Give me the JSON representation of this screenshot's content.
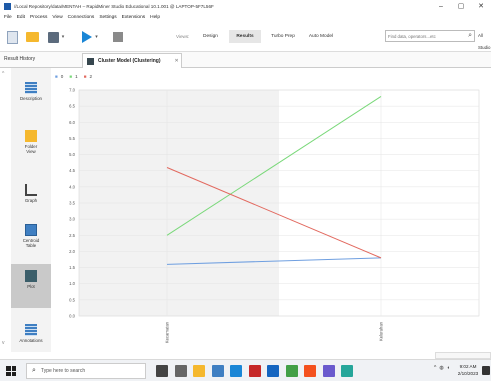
{
  "window": {
    "title": "//Local Repository/data/MENTAH – RapidMiner Studio Educational 10.1.001 @ LAPTOP-5F7L56F",
    "minimize": "–",
    "maximize": "▢",
    "close": "✕"
  },
  "menu": [
    "File",
    "Edit",
    "Process",
    "View",
    "Connections",
    "Settings",
    "Extensions",
    "Help"
  ],
  "toolbar": {
    "views_label": "Views:",
    "views": [
      "Design",
      "Results",
      "Turbo Prep",
      "Auto Model"
    ],
    "active_view": "Results",
    "search_placeholder": "Find data, operators...etc",
    "studio_label": "All Studio ▾"
  },
  "tabs": {
    "result_history": "Result History",
    "active_tab": "Cluster Model (Clustering)",
    "close": "✕"
  },
  "sidebar": {
    "items": [
      "Description",
      "Folder View",
      "Graph",
      "Centroid Table",
      "Plot",
      "Annotations"
    ],
    "active": "Plot"
  },
  "chart_data": {
    "type": "line",
    "categories": [
      "Kecamatan",
      "Kelurahan"
    ],
    "series": [
      {
        "name": "0",
        "color": "#6f9fe0",
        "values": [
          1.6,
          1.8
        ]
      },
      {
        "name": "1",
        "color": "#79d879",
        "values": [
          2.5,
          6.8
        ]
      },
      {
        "name": "2",
        "color": "#e2695f",
        "values": [
          4.6,
          1.8
        ]
      }
    ],
    "y_ticks": [
      "0.0",
      "0.5",
      "1.0",
      "1.5",
      "2.0",
      "2.5",
      "3.0",
      "3.5",
      "4.0",
      "4.5",
      "5.0",
      "5.5",
      "6.0",
      "6.5",
      "7.0"
    ],
    "ylim": [
      0,
      7
    ],
    "grid": true,
    "legend_position": "top-left"
  },
  "taskbar": {
    "search_text": "Type here to search",
    "time": "9:02 AM",
    "date": "2/10/2023",
    "icon_colors": [
      "#444444",
      "#666666",
      "#f5b82e",
      "#3f7fc2",
      "#1a86d6",
      "#c62828",
      "#1565c0",
      "#43a047",
      "#f4511e",
      "#6a5acd",
      "#26a69a"
    ]
  }
}
